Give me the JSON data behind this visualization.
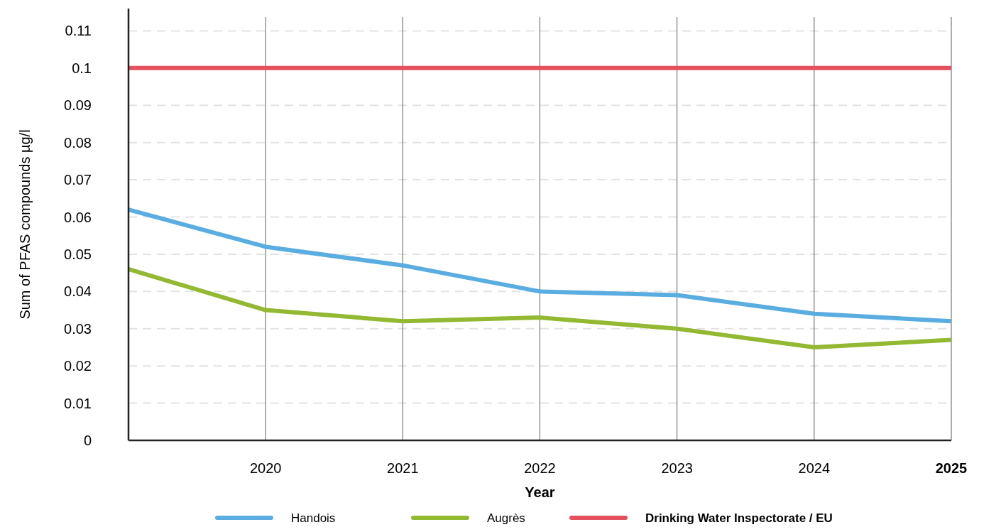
{
  "chart_data": {
    "type": "line",
    "xlabel": "Year",
    "ylabel": "Sum of PFAS compounds µg/l",
    "categories": [
      null,
      "2020",
      "2021",
      "2022",
      "2023",
      "2024",
      "2025"
    ],
    "series": [
      {
        "name": "Handois",
        "color": "#5aade0",
        "values": [
          0.062,
          0.052,
          0.047,
          0.04,
          0.039,
          0.034,
          0.032
        ]
      },
      {
        "name": "Augrès",
        "color": "#93b832",
        "values": [
          0.046,
          0.035,
          0.032,
          0.033,
          0.03,
          0.025,
          0.027
        ]
      },
      {
        "name": "Drinking Water Inspectorate / EU",
        "color": "#e4505e",
        "values": [
          0.1,
          0.1,
          0.1,
          0.1,
          0.1,
          0.1,
          0.1
        ]
      }
    ],
    "ylim": [
      0,
      0.116
    ],
    "yticks": [
      0,
      0.01,
      0.02,
      0.03,
      0.04,
      0.05,
      0.06,
      0.07,
      0.08,
      0.09,
      0.1,
      0.11
    ],
    "grid": true,
    "legend": "bottom",
    "line_style": "solid"
  }
}
